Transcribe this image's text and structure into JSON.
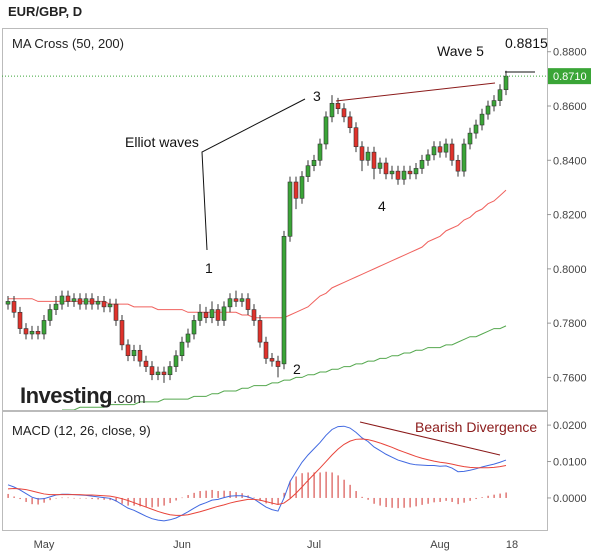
{
  "chart_data": {
    "type": "candlestick",
    "title": "EUR/GBP, D",
    "indicator": "MA Cross (50, 200)",
    "up_color": "#3aa537",
    "down_color": "#e0322b",
    "categories": [
      null,
      null,
      null,
      null,
      null,
      null,
      "May",
      null,
      null,
      null,
      null,
      null,
      null,
      null,
      null,
      null,
      null,
      null,
      null,
      null,
      null,
      null,
      null,
      null,
      null,
      null,
      null,
      null,
      null,
      "Jun",
      null,
      null,
      null,
      null,
      null,
      null,
      null,
      null,
      null,
      null,
      null,
      null,
      null,
      null,
      null,
      null,
      null,
      null,
      null,
      null,
      null,
      "Jul",
      null,
      null,
      null,
      null,
      null,
      null,
      null,
      null,
      null,
      null,
      null,
      null,
      null,
      null,
      null,
      null,
      null,
      null,
      null,
      null,
      "Aug",
      null,
      null,
      null,
      null,
      null,
      null,
      null,
      null,
      null,
      null,
      null,
      "18"
    ],
    "open": [
      0.787,
      0.788,
      0.784,
      0.778,
      0.776,
      0.777,
      0.776,
      0.781,
      0.785,
      0.787,
      0.79,
      0.788,
      0.789,
      0.787,
      0.789,
      0.787,
      0.788,
      0.786,
      0.787,
      0.781,
      0.772,
      0.768,
      0.77,
      0.766,
      0.764,
      0.761,
      0.762,
      0.761,
      0.764,
      0.768,
      0.773,
      0.776,
      0.781,
      0.784,
      0.782,
      0.785,
      0.781,
      0.786,
      0.789,
      0.788,
      0.789,
      0.785,
      0.781,
      0.773,
      0.767,
      0.766,
      0.765,
      0.812,
      0.832,
      0.826,
      0.834,
      0.838,
      0.84,
      0.846,
      0.856,
      0.861,
      0.859,
      0.856,
      0.852,
      0.845,
      0.84,
      0.843,
      0.837,
      0.839,
      0.835,
      0.836,
      0.833,
      0.836,
      0.835,
      0.837,
      0.84,
      0.842,
      0.845,
      0.843,
      0.846,
      0.84,
      0.836,
      0.846,
      0.85,
      0.853,
      0.857,
      0.86,
      0.862,
      0.866,
      null
    ],
    "high": [
      0.79,
      0.79,
      0.786,
      0.78,
      0.779,
      0.779,
      0.783,
      0.787,
      0.79,
      0.792,
      0.792,
      0.791,
      0.791,
      0.791,
      0.791,
      0.79,
      0.79,
      0.789,
      0.789,
      0.783,
      0.774,
      0.772,
      0.772,
      0.768,
      0.766,
      0.764,
      0.764,
      0.766,
      0.77,
      0.775,
      0.778,
      0.783,
      0.787,
      0.786,
      0.788,
      0.787,
      0.788,
      0.791,
      0.792,
      0.791,
      0.791,
      0.787,
      0.783,
      0.775,
      0.769,
      0.768,
      0.814,
      0.834,
      0.834,
      0.836,
      0.84,
      0.842,
      0.848,
      0.858,
      0.864,
      0.863,
      0.861,
      0.858,
      0.854,
      0.847,
      0.845,
      0.845,
      0.841,
      0.841,
      0.838,
      0.838,
      0.838,
      0.838,
      0.839,
      0.842,
      0.844,
      0.847,
      0.847,
      0.848,
      0.848,
      0.842,
      0.848,
      0.852,
      0.855,
      0.859,
      0.862,
      0.864,
      0.868,
      0.873,
      null
    ],
    "low": [
      0.785,
      0.782,
      0.776,
      0.774,
      0.774,
      0.774,
      0.774,
      0.779,
      0.783,
      0.785,
      0.786,
      0.786,
      0.785,
      0.785,
      0.785,
      0.785,
      0.784,
      0.784,
      0.779,
      0.77,
      0.766,
      0.766,
      0.764,
      0.762,
      0.759,
      0.759,
      0.758,
      0.759,
      0.762,
      0.766,
      0.771,
      0.774,
      0.779,
      0.78,
      0.78,
      0.779,
      0.779,
      0.784,
      0.786,
      0.786,
      0.783,
      0.779,
      0.771,
      0.765,
      0.764,
      0.76,
      0.763,
      0.81,
      0.822,
      0.824,
      0.832,
      0.836,
      0.838,
      0.844,
      0.854,
      0.857,
      0.854,
      0.85,
      0.843,
      0.836,
      0.838,
      0.833,
      0.835,
      0.833,
      0.833,
      0.831,
      0.831,
      0.833,
      0.833,
      0.835,
      0.838,
      0.84,
      0.841,
      0.841,
      0.838,
      0.834,
      0.834,
      0.844,
      0.848,
      0.851,
      0.855,
      0.858,
      0.86,
      0.864,
      null
    ],
    "close": [
      0.788,
      0.784,
      0.778,
      0.776,
      0.777,
      0.776,
      0.781,
      0.785,
      0.787,
      0.79,
      0.788,
      0.789,
      0.787,
      0.789,
      0.787,
      0.788,
      0.786,
      0.787,
      0.781,
      0.772,
      0.768,
      0.77,
      0.766,
      0.764,
      0.761,
      0.762,
      0.761,
      0.764,
      0.768,
      0.773,
      0.776,
      0.781,
      0.784,
      0.782,
      0.785,
      0.781,
      0.786,
      0.789,
      0.788,
      0.789,
      0.785,
      0.781,
      0.773,
      0.767,
      0.766,
      0.764,
      0.812,
      0.832,
      0.826,
      0.834,
      0.838,
      0.84,
      0.846,
      0.856,
      0.861,
      0.859,
      0.856,
      0.852,
      0.845,
      0.84,
      0.843,
      0.837,
      0.839,
      0.835,
      0.836,
      0.833,
      0.836,
      0.835,
      0.837,
      0.84,
      0.842,
      0.845,
      0.843,
      0.846,
      0.84,
      0.836,
      0.846,
      0.85,
      0.853,
      0.857,
      0.86,
      0.862,
      0.866,
      0.871,
      null
    ],
    "series": [
      {
        "color": "#f0625e",
        "values": [
          0.789,
          0.789,
          0.789,
          0.789,
          0.789,
          0.788,
          0.788,
          0.788,
          0.788,
          0.788,
          0.788,
          0.788,
          0.788,
          0.788,
          0.788,
          0.788,
          0.788,
          0.787,
          0.787,
          0.787,
          0.787,
          0.786,
          0.786,
          0.786,
          0.786,
          0.785,
          0.785,
          0.785,
          0.785,
          0.785,
          0.784,
          0.784,
          0.784,
          0.784,
          0.784,
          0.784,
          0.784,
          0.784,
          0.784,
          0.783,
          0.783,
          0.782,
          0.782,
          0.782,
          0.782,
          0.782,
          0.782,
          0.783,
          0.784,
          0.785,
          0.786,
          0.788,
          0.79,
          0.791,
          0.793,
          0.794,
          0.795,
          0.796,
          0.797,
          0.798,
          0.799,
          0.8,
          0.801,
          0.802,
          0.803,
          0.804,
          0.805,
          0.806,
          0.807,
          0.808,
          0.81,
          0.811,
          0.812,
          0.814,
          0.815,
          0.816,
          0.818,
          0.819,
          0.821,
          0.822,
          0.824,
          0.825,
          0.827,
          0.829,
          null
        ]
      },
      {
        "color": "#55a84f",
        "values": [
          null,
          null,
          null,
          null,
          null,
          null,
          null,
          null,
          null,
          0.748,
          0.748,
          0.748,
          0.749,
          0.749,
          0.749,
          0.749,
          0.749,
          0.75,
          0.75,
          0.75,
          0.75,
          0.75,
          0.751,
          0.751,
          0.751,
          0.751,
          0.752,
          0.752,
          0.752,
          0.752,
          0.752,
          0.753,
          0.753,
          0.753,
          0.754,
          0.754,
          0.755,
          0.755,
          0.755,
          0.756,
          0.756,
          0.757,
          0.757,
          0.757,
          0.758,
          0.758,
          0.759,
          0.759,
          0.76,
          0.76,
          0.761,
          0.761,
          0.762,
          0.762,
          0.763,
          0.763,
          0.764,
          0.764,
          0.765,
          0.765,
          0.766,
          0.766,
          0.767,
          0.767,
          0.768,
          0.768,
          0.769,
          0.769,
          0.77,
          0.77,
          0.771,
          0.771,
          0.771,
          0.772,
          0.772,
          0.773,
          0.774,
          0.775,
          0.775,
          0.776,
          0.777,
          0.778,
          0.778,
          0.779,
          null
        ]
      }
    ],
    "ylim": [
      0.748,
      0.888
    ],
    "yticks": [
      {
        "value": 0.76,
        "label": "0.7600"
      },
      {
        "value": 0.78,
        "label": "0.7800"
      },
      {
        "value": 0.8,
        "label": "0.8000"
      },
      {
        "value": 0.82,
        "label": "0.8200"
      },
      {
        "value": 0.84,
        "label": "0.8400"
      },
      {
        "value": 0.86,
        "label": "0.8600"
      },
      {
        "value": 0.88,
        "label": "0.8800"
      }
    ],
    "last_price": {
      "value": 0.871,
      "label": "0.8710"
    },
    "annotations": [
      "Wave 5",
      "0.8815",
      "3",
      "Elliot waves",
      "1",
      "2",
      "4",
      "Bearish Divergence"
    ],
    "logo": [
      "Investing",
      ".com"
    ],
    "macd": {
      "title": "MACD (12, 26, close, 9)",
      "ylim": [
        -0.0088,
        0.0236
      ],
      "yticks": [
        {
          "value": 0,
          "label": "0.0000"
        },
        {
          "value": 0.01,
          "label": "0.0100"
        },
        {
          "value": 0.02,
          "label": "0.0200"
        }
      ],
      "histogram": {
        "color": "#d9534f",
        "values": [
          0.0011,
          0.0004,
          -0.0003,
          -0.0011,
          -0.0017,
          -0.0018,
          -0.0013,
          -0.0006,
          -0.0001,
          0.0001,
          0.0001,
          0.0,
          -0.0001,
          -0.0001,
          -0.0003,
          -0.0004,
          -0.0005,
          -0.0006,
          -0.001,
          -0.0016,
          -0.0021,
          -0.0021,
          -0.0023,
          -0.0025,
          -0.0026,
          -0.0024,
          -0.0021,
          -0.0014,
          -0.0007,
          0.0001,
          0.0008,
          0.0014,
          0.0019,
          0.002,
          0.0022,
          0.0019,
          0.002,
          0.0019,
          0.0016,
          0.0013,
          0.0007,
          0.0001,
          -0.0008,
          -0.0015,
          -0.0018,
          -0.0018,
          0.0014,
          0.0047,
          0.0059,
          0.0068,
          0.007,
          0.007,
          0.007,
          0.0072,
          0.007,
          0.0062,
          0.005,
          0.0036,
          0.0019,
          0.0003,
          -0.0005,
          -0.0016,
          -0.0021,
          -0.0025,
          -0.0027,
          -0.0028,
          -0.0027,
          -0.0026,
          -0.0023,
          -0.0019,
          -0.0016,
          -0.0012,
          -0.0011,
          -0.0008,
          -0.0011,
          -0.0017,
          -0.0013,
          -0.0008,
          -0.0003,
          0.0002,
          0.0006,
          0.0009,
          0.0012,
          0.0015,
          null
        ]
      },
      "series": [
        {
          "color": "#4169e1",
          "values": [
            0.0036,
            0.003,
            0.0022,
            0.0012,
            0.0002,
            -0.0003,
            -0.0002,
            0.0003,
            0.0008,
            0.001,
            0.001,
            0.0009,
            0.0008,
            0.0007,
            0.0005,
            0.0003,
            0.0001,
            -0.0001,
            -0.0008,
            -0.0018,
            -0.0028,
            -0.0034,
            -0.0042,
            -0.005,
            -0.0057,
            -0.0061,
            -0.0063,
            -0.006,
            -0.0055,
            -0.0047,
            -0.0038,
            -0.0028,
            -0.0019,
            -0.0013,
            -0.0006,
            -0.0004,
            0.0001,
            0.0005,
            0.0006,
            0.0006,
            0.0003,
            -0.0003,
            -0.0014,
            -0.0025,
            -0.0032,
            -0.0036,
            0.0,
            0.0045,
            0.0072,
            0.0098,
            0.0118,
            0.0135,
            0.0152,
            0.0172,
            0.0188,
            0.0196,
            0.0197,
            0.0192,
            0.018,
            0.0165,
            0.0155,
            0.014,
            0.013,
            0.012,
            0.0112,
            0.0104,
            0.0099,
            0.0094,
            0.0091,
            0.009,
            0.0089,
            0.0089,
            0.0087,
            0.0088,
            0.0082,
            0.0072,
            0.0073,
            0.0076,
            0.008,
            0.0085,
            0.0089,
            0.0093,
            0.0098,
            0.0104,
            null
          ]
        },
        {
          "color": "#e8443a",
          "values": [
            0.0025,
            0.0026,
            0.0025,
            0.0023,
            0.0019,
            0.0015,
            0.0011,
            0.0009,
            0.0009,
            0.0009,
            0.0009,
            0.0009,
            0.0009,
            0.0008,
            0.0008,
            0.0007,
            0.0006,
            0.0005,
            0.0002,
            -0.0002,
            -0.0007,
            -0.0013,
            -0.0019,
            -0.0025,
            -0.0031,
            -0.0037,
            -0.0042,
            -0.0046,
            -0.0048,
            -0.0048,
            -0.0046,
            -0.0042,
            -0.0038,
            -0.0033,
            -0.0028,
            -0.0023,
            -0.0019,
            -0.0014,
            -0.001,
            -0.0007,
            -0.0004,
            -0.0004,
            -0.0006,
            -0.001,
            -0.0014,
            -0.0018,
            -0.0014,
            -0.0002,
            0.0013,
            0.003,
            0.0048,
            0.0065,
            0.0082,
            0.01,
            0.0118,
            0.0134,
            0.0147,
            0.0156,
            0.0161,
            0.0162,
            0.016,
            0.0156,
            0.0151,
            0.0145,
            0.0139,
            0.0132,
            0.0126,
            0.012,
            0.0114,
            0.0109,
            0.0105,
            0.0101,
            0.0098,
            0.0096,
            0.0093,
            0.0089,
            0.0086,
            0.0084,
            0.0083,
            0.0083,
            0.0083,
            0.0084,
            0.0086,
            0.0089,
            null
          ]
        }
      ]
    }
  }
}
